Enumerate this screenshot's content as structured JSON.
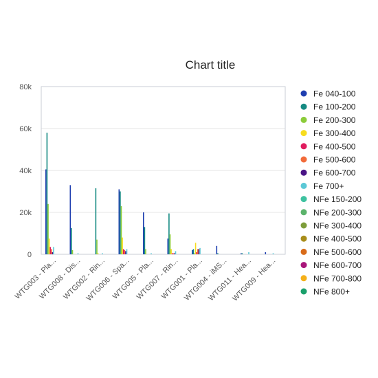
{
  "chart_data": {
    "type": "bar",
    "title": "Chart title",
    "xlabel": "",
    "ylabel": "",
    "ylim": [
      0,
      80000
    ],
    "yticks": [
      0,
      20000,
      40000,
      60000,
      80000
    ],
    "ytick_labels": [
      "0",
      "20k",
      "40k",
      "60k",
      "80k"
    ],
    "grid": true,
    "legend_position": "right",
    "categories": [
      "WTG003 - Pla...",
      "WTG008 - Dis...",
      "WTG002 - Rin...",
      "WTG006 - Spa...",
      "WTG005 - Pla...",
      "WTG007 - Rin...",
      "WTG001 - Pla...",
      "WTG004 - iMS...",
      "WTG011 - Hea...",
      "WTG009 - Hea..."
    ],
    "series": [
      {
        "name": "Fe 040-100",
        "color": "#1f3fb0",
        "values": [
          40500,
          33000,
          0,
          31000,
          20000,
          7500,
          2000,
          4000,
          500,
          1000
        ]
      },
      {
        "name": "Fe 100-200",
        "color": "#158a82",
        "values": [
          58000,
          12500,
          31500,
          30000,
          13000,
          19500,
          2500,
          500,
          500,
          0
        ]
      },
      {
        "name": "Fe 200-300",
        "color": "#8ccc3a",
        "values": [
          24000,
          2000,
          7000,
          23000,
          2500,
          9500,
          500,
          0,
          0,
          0
        ]
      },
      {
        "name": "Fe 300-400",
        "color": "#f7dc1e",
        "values": [
          7500,
          0,
          500,
          8000,
          0,
          2500,
          5500,
          0,
          0,
          0
        ]
      },
      {
        "name": "Fe 400-500",
        "color": "#e01c5e",
        "values": [
          3500,
          0,
          0,
          2500,
          0,
          500,
          1000,
          0,
          0,
          0
        ]
      },
      {
        "name": "Fe 500-600",
        "color": "#f26b3a",
        "values": [
          2500,
          0,
          0,
          2000,
          0,
          500,
          2500,
          0,
          0,
          0
        ]
      },
      {
        "name": "Fe 600-700",
        "color": "#4a1486",
        "values": [
          1000,
          0,
          0,
          1500,
          0,
          500,
          2500,
          0,
          0,
          0
        ]
      },
      {
        "name": "Fe 700+",
        "color": "#5bc8d6",
        "values": [
          3500,
          500,
          500,
          2500,
          500,
          1500,
          3000,
          0,
          1000,
          500
        ]
      },
      {
        "name": "NFe 150-200",
        "color": "#3ec2a0",
        "values": [
          0,
          0,
          0,
          0,
          0,
          0,
          0,
          0,
          0,
          0
        ]
      },
      {
        "name": "NFe 200-300",
        "color": "#5bb36b",
        "values": [
          0,
          0,
          0,
          0,
          0,
          0,
          0,
          0,
          0,
          0
        ]
      },
      {
        "name": "NFe 300-400",
        "color": "#7d9d3a",
        "values": [
          0,
          0,
          0,
          0,
          0,
          0,
          0,
          0,
          0,
          0
        ]
      },
      {
        "name": "NFe 400-500",
        "color": "#a88d1a",
        "values": [
          0,
          0,
          0,
          0,
          0,
          0,
          0,
          0,
          0,
          0
        ]
      },
      {
        "name": "NFe 500-600",
        "color": "#d86b1a",
        "values": [
          0,
          0,
          0,
          0,
          0,
          0,
          0,
          0,
          0,
          0
        ]
      },
      {
        "name": "NFe 600-700",
        "color": "#a8157a",
        "values": [
          0,
          0,
          0,
          0,
          0,
          0,
          0,
          0,
          0,
          0
        ]
      },
      {
        "name": "NFe 700-800",
        "color": "#f5b019",
        "values": [
          0,
          0,
          0,
          0,
          0,
          0,
          0,
          0,
          0,
          0
        ]
      },
      {
        "name": "NFe 800+",
        "color": "#1aa06b",
        "values": [
          0,
          0,
          0,
          0,
          0,
          0,
          0,
          0,
          0,
          0
        ]
      }
    ]
  }
}
